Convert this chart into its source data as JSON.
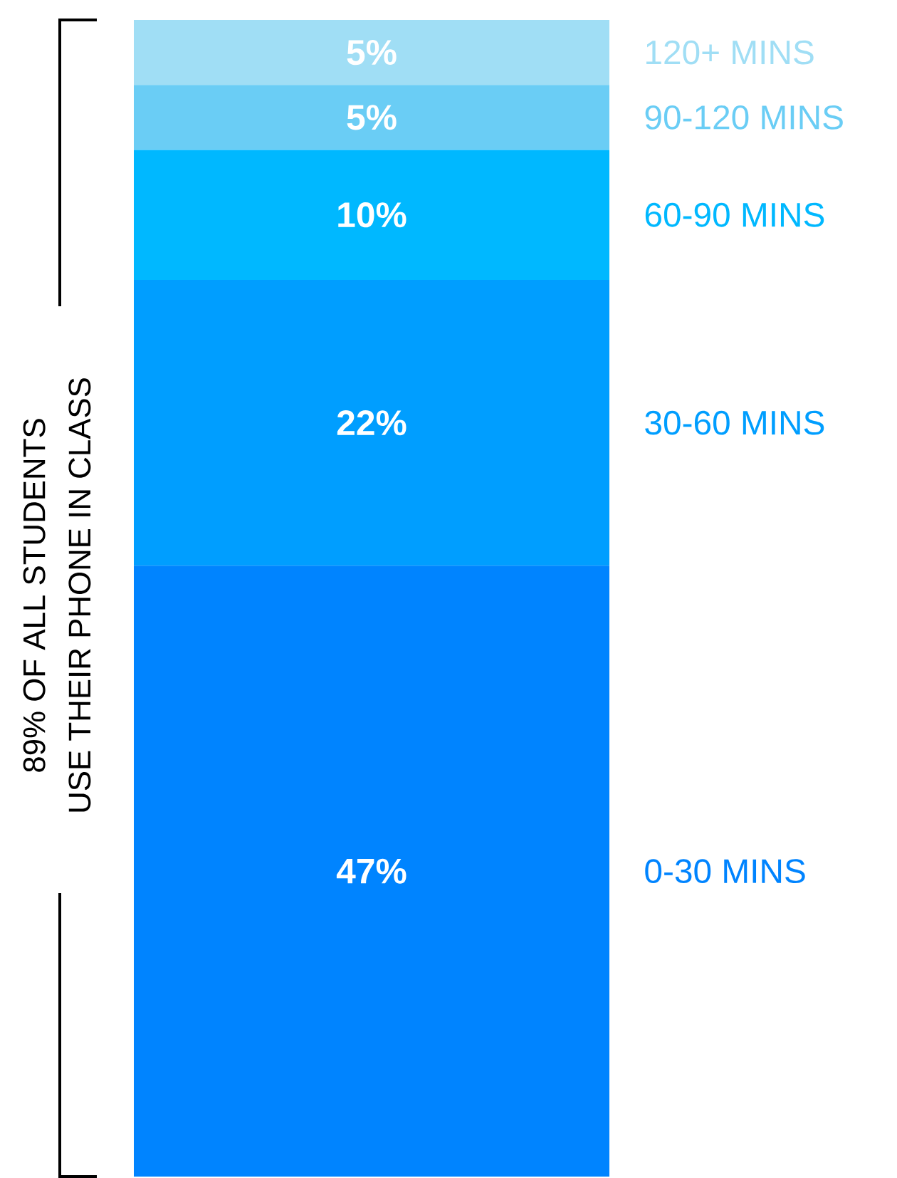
{
  "chart_data": {
    "type": "bar",
    "stacked": true,
    "categories": [
      null
    ],
    "legend": false,
    "series": [
      {
        "name": "0-30 MINS",
        "color": "#0084ff",
        "values": [
          47
        ],
        "value_labels": [
          "47%"
        ]
      },
      {
        "name": "30-60 MINS",
        "color": "#009eff",
        "values": [
          22
        ],
        "value_labels": [
          "22%"
        ]
      },
      {
        "name": "60-90 MINS",
        "color": "#00b8ff",
        "values": [
          10
        ],
        "value_labels": [
          "10%"
        ]
      },
      {
        "name": "90-120 MINS",
        "color": "#6acdf5",
        "values": [
          5
        ],
        "value_labels": [
          "5%"
        ]
      },
      {
        "name": "120+ MINS",
        "color": "#a0def5",
        "values": [
          5
        ],
        "value_labels": [
          "5%"
        ]
      }
    ],
    "annotations": [
      "89% OF ALL STUDENTS USE THEIR PHONE IN CLASS"
    ]
  }
}
